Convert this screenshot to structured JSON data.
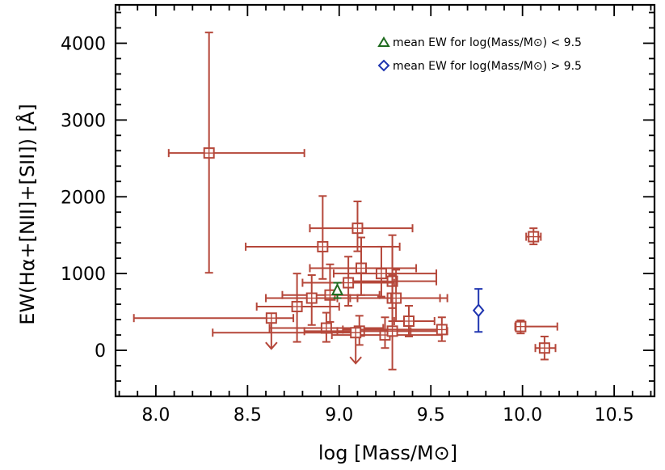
{
  "chart_data": {
    "type": "scatter",
    "xlabel": "log [Mass/M⊙]",
    "ylabel": "EW(Hα+[NII]+[SII]) [Å]",
    "xlim": [
      7.78,
      10.72
    ],
    "ylim": [
      -600,
      4500
    ],
    "xticks": [
      "8.0",
      "8.5",
      "9.0",
      "9.5",
      "10.0",
      "10.5"
    ],
    "yticks": [
      "0",
      "1000",
      "2000",
      "3000",
      "4000"
    ],
    "grid": false,
    "legend_position": "top-right",
    "colors": {
      "data": "#b5473a",
      "low_mass_mean": "#1f6b1f",
      "high_mass_mean": "#1f35b0",
      "axis": "#000000"
    },
    "series": [
      {
        "marker": "square",
        "color": "#b5473a",
        "points": [
          {
            "x": 8.29,
            "y": 2570,
            "xerr": [
              0.22,
              0.52
            ],
            "yerr": [
              1560,
              1570
            ]
          },
          {
            "x": 9.1,
            "y": 1590,
            "xerr": [
              0.26,
              0.3
            ],
            "yerr": [
              300,
              350
            ]
          },
          {
            "x": 8.91,
            "y": 1350,
            "xerr": [
              0.42,
              0.42
            ],
            "yerr": [
              420,
              660
            ]
          },
          {
            "x": 10.06,
            "y": 1480,
            "xerr": [
              0.04,
              0.04
            ],
            "yerr": [
              100,
              110
            ]
          },
          {
            "x": 9.12,
            "y": 1070,
            "xerr": [
              0.28,
              0.3
            ],
            "yerr": [
              350,
              400
            ]
          },
          {
            "x": 9.23,
            "y": 1000,
            "xerr": [
              0.26,
              0.3
            ],
            "yerr": [
              300,
              350
            ]
          },
          {
            "x": 9.29,
            "y": 900,
            "xerr": [
              0.25,
              0.24
            ],
            "yerr": [
              350,
              450
            ]
          },
          {
            "x": 9.05,
            "y": 880,
            "xerr": [
              0.25,
              0.25
            ],
            "yerr": [
              300,
              340
            ]
          },
          {
            "x": 8.95,
            "y": 720,
            "xerr": [
              0.26,
              0.27
            ],
            "yerr": [
              350,
              400
            ]
          },
          {
            "x": 8.85,
            "y": 680,
            "xerr": [
              0.25,
              0.25
            ],
            "yerr": [
              350,
              300
            ]
          },
          {
            "x": 8.77,
            "y": 570,
            "xerr": [
              0.22,
              0.23
            ],
            "yerr": [
              460,
              430
            ]
          },
          {
            "x": 9.29,
            "y": 680,
            "xerr": [
              0.3,
              0.3
            ],
            "yerr": [
              300,
              300
            ]
          },
          {
            "x": 9.31,
            "y": 680,
            "xerr": [
              0.25,
              0.24
            ],
            "yerr": [
              300,
              370
            ]
          },
          {
            "x": 9.38,
            "y": 380,
            "xerr": [
              0.08,
              0.14
            ],
            "yerr": [
              200,
              200
            ]
          },
          {
            "x": 8.93,
            "y": 290,
            "xerr": [
              0.31,
              0.31
            ],
            "yerr": [
              180,
              200
            ]
          },
          {
            "x": 9.11,
            "y": 250,
            "xerr": [
              0.3,
              0.28
            ],
            "yerr": [
              180,
              200
            ]
          },
          {
            "x": 9.25,
            "y": 200,
            "xerr": [
              0.29,
              0.31
            ],
            "yerr": [
              170,
              230
            ]
          },
          {
            "x": 9.29,
            "y": 250,
            "xerr": [
              0.3,
              0.3
            ],
            "yerr": [
              500,
              1250
            ]
          },
          {
            "x": 9.56,
            "y": 270,
            "xerr": [
              0.54,
              0.01
            ],
            "yerr": [
              150,
              160
            ]
          },
          {
            "x": 9.99,
            "y": 310,
            "xerr": [
              0.03,
              0.2
            ],
            "yerr": [
              90,
              80
            ]
          },
          {
            "x": 10.12,
            "y": 30,
            "xerr": [
              0.05,
              0.06
            ],
            "yerr": [
              150,
              150
            ]
          },
          {
            "x": 8.63,
            "y": 420,
            "xerr": [
              0.75,
              0.12
            ],
            "yerr": [
              0,
              0
            ],
            "upper_limit": true
          },
          {
            "x": 9.09,
            "y": 230,
            "xerr": [
              0.78,
              0.01
            ],
            "yerr": [
              0,
              0
            ],
            "upper_limit": true
          }
        ]
      },
      {
        "name": "mean EW for log(Mass/M⊙) < 9.5",
        "marker": "triangle",
        "color": "#1f6b1f",
        "points": [
          {
            "x": 8.99,
            "y": 780,
            "xerr": [
              0,
              0
            ],
            "yerr": [
              100,
              100
            ]
          }
        ]
      },
      {
        "name": "mean EW for log(Mass/M⊙) > 9.5",
        "marker": "diamond",
        "color": "#1f35b0",
        "points": [
          {
            "x": 9.76,
            "y": 520,
            "xerr": [
              0,
              0
            ],
            "yerr": [
              280,
              280
            ]
          }
        ]
      }
    ]
  }
}
